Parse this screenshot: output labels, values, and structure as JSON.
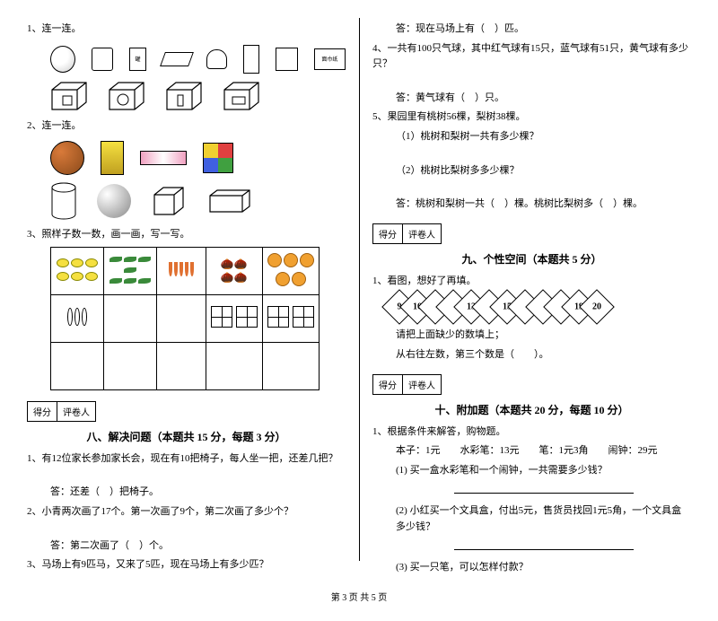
{
  "left": {
    "q1": "1、连一连。",
    "tissue_label": "面巾纸",
    "q2": "2、连一连。",
    "q3": "3、照样子数一数，画一画，写一写。",
    "table": {
      "row1_counts": [
        6,
        7,
        5,
        4,
        5
      ],
      "row2_prefill_sticks": 3,
      "row2_prefill_grids": 2
    },
    "score_label_1": "得分",
    "score_label_2": "评卷人",
    "section8_title": "八、解决问题（本题共 15 分，每题 3 分）",
    "q8_1": "1、有12位家长参加家长会，现在有10把椅子，每人坐一把，还差几把？",
    "q8_1_ans": "答：还差（　）把椅子。",
    "q8_2": "2、小青两次画了17个。第一次画了9个，第二次画了多少个？",
    "q8_2_ans": "答：第二次画了（　）个。",
    "q8_3": "3、马场上有9匹马，又来了5匹，现在马场上有多少匹？"
  },
  "right": {
    "q8_3_ans": "答：现在马场上有（　）匹。",
    "q8_4": "4、一共有100只气球，其中红气球有15只，蓝气球有51只，黄气球有多少只？",
    "q8_4_ans": "答：黄气球有（　）只。",
    "q8_5": "5、果园里有桃树56棵，梨树38棵。",
    "q8_5_1": "（1）桃树和梨树一共有多少棵？",
    "q8_5_2": "（2）桃树比梨树多多少棵？",
    "q8_5_ans": "答：桃树和梨树一共（　）棵。桃树比梨树多（　）棵。",
    "score_label_1": "得分",
    "score_label_2": "评卷人",
    "section9_title": "九、个性空间（本题共 5 分）",
    "q9_1": "1、看图，想好了再填。",
    "diamonds": [
      "9",
      "10",
      "",
      "",
      "13",
      "",
      "15",
      "",
      "",
      "",
      "19",
      "20"
    ],
    "q9_text1": "请把上面缺少的数填上；",
    "q9_text2": "从右往左数，第三个数是（　　）。",
    "section10_title": "十、附加题（本题共 20 分，每题 10 分）",
    "q10_1": "1、根据条件来解答，购物题。",
    "q10_1_items": "本子：1元　　水彩笔：13元　　笔：1元3角　　闹钟：29元",
    "q10_1_1": "(1) 买一盒水彩笔和一个闹钟，一共需要多少钱？",
    "q10_1_2": "(2) 小红买一个文具盒，付出5元，售货员找回1元5角，一个文具盒多少钱？",
    "q10_1_3": "(3) 买一只笔，可以怎样付款？"
  },
  "footer": "第 3 页 共 5 页"
}
